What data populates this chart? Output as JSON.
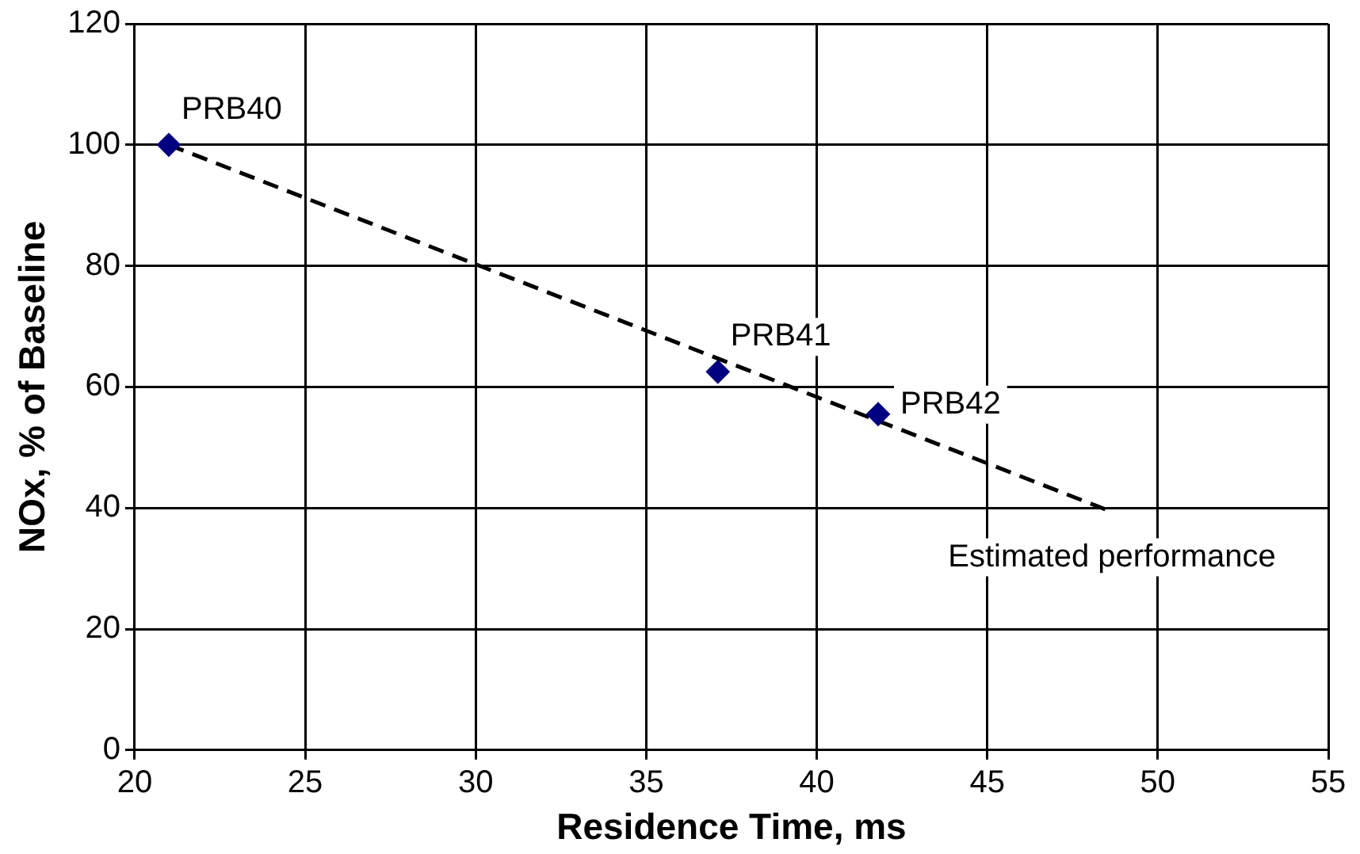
{
  "chart_data": {
    "type": "scatter",
    "xlabel": "Residence Time, ms",
    "ylabel": "NOx, % of Baseline",
    "series": [
      {
        "color": "#000080",
        "x": [
          21,
          37.1,
          41.8
        ],
        "values": [
          100,
          62.5,
          55.5
        ],
        "marker": "diamond"
      },
      {
        "type": "line",
        "color": "#000000",
        "x": [
          21,
          48.5
        ],
        "values": [
          100,
          39.7
        ],
        "marker": "none",
        "line_style": "dashed"
      }
    ],
    "annotations": [
      {
        "text": "PRB40",
        "x": 21,
        "y": 100
      },
      {
        "text": "PRB41",
        "x": 37.1,
        "y": 62.5
      },
      {
        "text": "PRB42",
        "x": 41.8,
        "y": 55.5
      },
      {
        "text": "Estimated performance",
        "x": 48.5,
        "y": 39.7
      }
    ],
    "xlim": [
      20,
      55
    ],
    "xticks": [
      20,
      25,
      30,
      35,
      40,
      45,
      50,
      55
    ],
    "ylim": [
      0,
      120
    ],
    "yticks": [
      0,
      20,
      40,
      60,
      80,
      100,
      120
    ],
    "grid": true,
    "legend": false
  }
}
